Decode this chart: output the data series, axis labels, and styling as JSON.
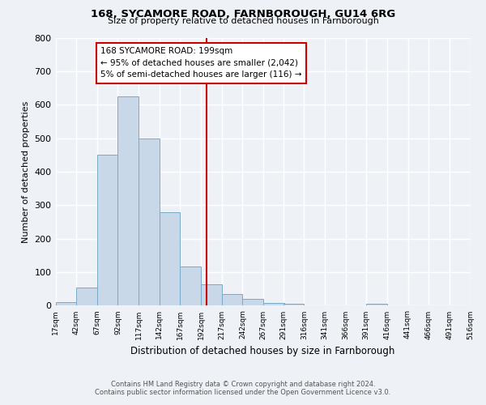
{
  "title": "168, SYCAMORE ROAD, FARNBOROUGH, GU14 6RG",
  "subtitle": "Size of property relative to detached houses in Farnborough",
  "xlabel": "Distribution of detached houses by size in Farnborough",
  "ylabel": "Number of detached properties",
  "bar_color": "#c8d8e8",
  "bar_edge_color": "#7aaac8",
  "background_color": "#eef2f7",
  "grid_color": "#ffffff",
  "bin_edges": [
    17,
    42,
    67,
    92,
    117,
    142,
    167,
    192,
    217,
    242,
    267,
    291,
    316,
    341,
    366,
    391,
    416,
    441,
    466,
    491,
    516
  ],
  "bar_heights": [
    10,
    55,
    450,
    625,
    500,
    280,
    117,
    63,
    35,
    20,
    8,
    7,
    0,
    0,
    0,
    5,
    0,
    0,
    0,
    0
  ],
  "vline_x": 199,
  "vline_color": "#cc0000",
  "annotation_title": "168 SYCAMORE ROAD: 199sqm",
  "annotation_line1": "← 95% of detached houses are smaller (2,042)",
  "annotation_line2": "5% of semi-detached houses are larger (116) →",
  "annotation_box_color": "#ffffff",
  "annotation_box_edge_color": "#cc0000",
  "ylim": [
    0,
    800
  ],
  "yticks": [
    0,
    100,
    200,
    300,
    400,
    500,
    600,
    700,
    800
  ],
  "footer_line1": "Contains HM Land Registry data © Crown copyright and database right 2024.",
  "footer_line2": "Contains public sector information licensed under the Open Government Licence v3.0."
}
